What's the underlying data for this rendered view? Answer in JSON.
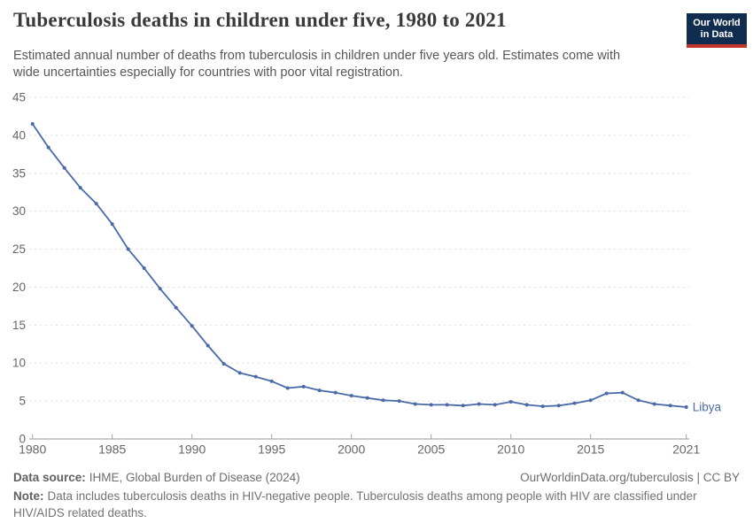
{
  "header": {
    "title": "Tuberculosis deaths in children under five, 1980 to 2021",
    "subtitle": "Estimated annual number of deaths from tuberculosis in children under five years old. Estimates come with wide uncertainties especially for countries with poor vital registration.",
    "logo": {
      "line1": "Our World",
      "line2": "in Data",
      "bg_color": "#102d50",
      "accent_color": "#c0342c"
    }
  },
  "chart_data": {
    "type": "line",
    "title": "Tuberculosis deaths in children under five, 1980 to 2021",
    "x": [
      1980,
      1981,
      1982,
      1983,
      1984,
      1985,
      1986,
      1987,
      1988,
      1989,
      1990,
      1991,
      1992,
      1993,
      1994,
      1995,
      1996,
      1997,
      1998,
      1999,
      2000,
      2001,
      2002,
      2003,
      2004,
      2005,
      2006,
      2007,
      2008,
      2009,
      2010,
      2011,
      2012,
      2013,
      2014,
      2015,
      2016,
      2017,
      2018,
      2019,
      2020,
      2021
    ],
    "series": [
      {
        "name": "Libya",
        "color": "#4a6ba8",
        "values": [
          41.5,
          38.4,
          35.7,
          33.1,
          31.0,
          28.3,
          25.0,
          22.5,
          19.8,
          17.3,
          14.9,
          12.3,
          9.9,
          8.7,
          8.2,
          7.6,
          6.7,
          6.9,
          6.4,
          6.1,
          5.7,
          5.4,
          5.1,
          5.0,
          4.6,
          4.5,
          4.5,
          4.4,
          4.6,
          4.5,
          4.9,
          4.5,
          4.3,
          4.4,
          4.7,
          5.1,
          6.0,
          6.1,
          5.1,
          4.6,
          4.4,
          4.2
        ]
      }
    ],
    "xlabel": "",
    "ylabel": "",
    "xlim": [
      1980,
      2021
    ],
    "ylim": [
      0,
      45
    ],
    "y_ticks": [
      0,
      5,
      10,
      15,
      20,
      25,
      30,
      35,
      40,
      45
    ],
    "x_ticks": [
      1980,
      1985,
      1990,
      1995,
      2000,
      2005,
      2010,
      2015,
      2021
    ],
    "x_tick_labels": [
      "1980",
      "1985",
      "1990",
      "1995",
      "2000",
      "2005",
      "2010",
      "2015",
      "2021"
    ],
    "grid": "horizontal dashed gridlines",
    "legend": "end-of-line label",
    "end_label": "Libya"
  },
  "colors": {
    "line": "#4a6ba8",
    "grid": "#dddddd",
    "axis": "#9a9a9a",
    "tick": "#a5a5a5",
    "tick_label": "#666666"
  },
  "footer": {
    "source_label": "Data source:",
    "source_text": "IHME, Global Burden of Disease (2024)",
    "link_text": "OurWorldinData.org/tuberculosis | CC BY",
    "note_label": "Note:",
    "note_text": "Data includes tuberculosis deaths in HIV-negative people. Tuberculosis deaths among people with HIV are classified under HIV/AIDS related deaths."
  }
}
